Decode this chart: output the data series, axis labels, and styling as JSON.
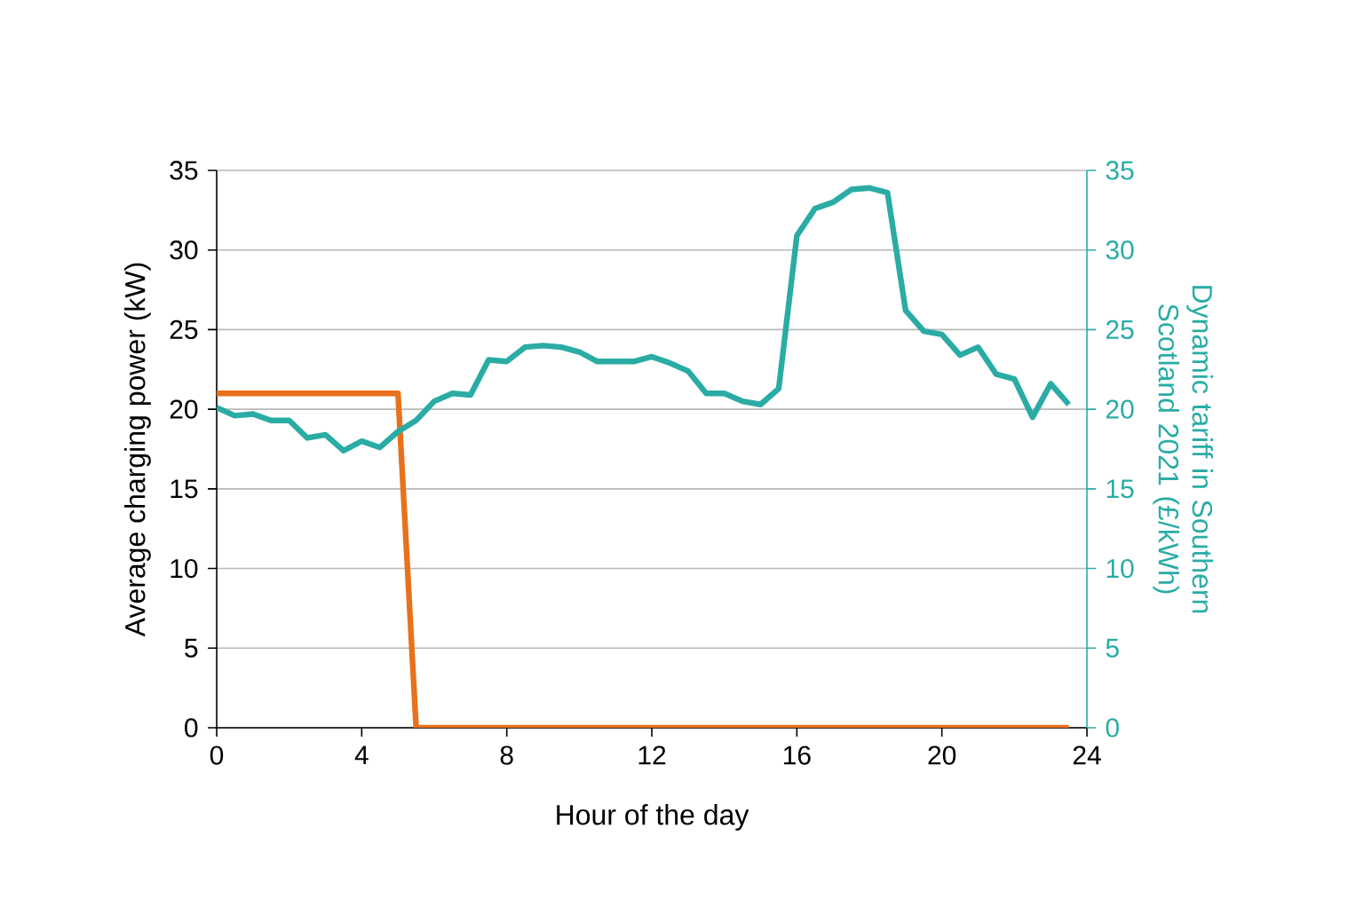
{
  "chart_data": {
    "type": "line",
    "xlabel": "Hour of the day",
    "ylabel": "Average charging power (kW)",
    "y2label": "Dynamic tariff in Southern Scotland 2021 (£/kWh)",
    "x": [
      0,
      0.5,
      1,
      1.5,
      2,
      2.5,
      3,
      3.5,
      4,
      4.5,
      5,
      5.5,
      6,
      6.5,
      7,
      7.5,
      8,
      8.5,
      9,
      9.5,
      10,
      10.5,
      11,
      11.5,
      12,
      12.5,
      13,
      13.5,
      14,
      14.5,
      15,
      15.5,
      16,
      16.5,
      17,
      17.5,
      18,
      18.5,
      19,
      19.5,
      20,
      20.5,
      21,
      21.5,
      22,
      22.5,
      23,
      23.5
    ],
    "series": [
      {
        "color": "#e8711c",
        "values": [
          21,
          21,
          21,
          21,
          21,
          21,
          21,
          21,
          21,
          21,
          21,
          0,
          0,
          0,
          0,
          0,
          0,
          0,
          0,
          0,
          0,
          0,
          0,
          0,
          0,
          0,
          0,
          0,
          0,
          0,
          0,
          0,
          0,
          0,
          0,
          0,
          0,
          0,
          0,
          0,
          0,
          0,
          0,
          0,
          0,
          0,
          0,
          0
        ]
      },
      {
        "color": "#2aaca5",
        "axis": "y2",
        "values": [
          20.1,
          19.6,
          19.7,
          19.3,
          19.3,
          18.2,
          18.4,
          17.4,
          18.0,
          17.6,
          18.6,
          19.3,
          20.5,
          21.0,
          20.9,
          23.1,
          23.0,
          23.9,
          24.0,
          23.9,
          23.6,
          23.0,
          23.0,
          23.0,
          23.3,
          22.9,
          22.4,
          21.0,
          21.0,
          20.5,
          20.3,
          21.3,
          30.9,
          32.6,
          33.0,
          33.8,
          33.9,
          33.6,
          26.2,
          24.9,
          24.7,
          23.4,
          23.9,
          22.2,
          21.9,
          19.5,
          21.6,
          20.3
        ]
      }
    ],
    "xlim": [
      0,
      24
    ],
    "xticks": [
      0,
      4,
      8,
      12,
      16,
      20,
      24
    ],
    "ylim": [
      0,
      35
    ],
    "yticks": [
      0,
      5,
      10,
      15,
      20,
      25,
      30,
      35
    ],
    "y2lim": [
      0,
      35
    ],
    "y2ticks": [
      0,
      5,
      10,
      15,
      20,
      25,
      30,
      35
    ],
    "grid": "y",
    "line_style": "solid",
    "marker": "none"
  }
}
